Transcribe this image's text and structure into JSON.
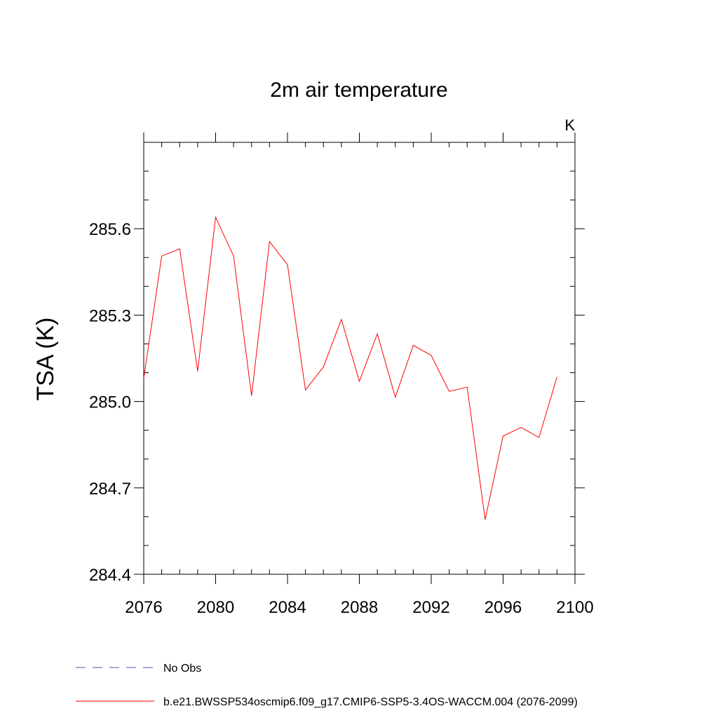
{
  "chart_data": {
    "type": "line",
    "title": "2m air temperature",
    "units_label": "K",
    "xlabel": "",
    "ylabel": "TSA  (K)",
    "xlim": [
      2076,
      2100
    ],
    "ylim": [
      284.4,
      285.9
    ],
    "x_ticks": [
      2076,
      2080,
      2084,
      2088,
      2092,
      2096,
      2100
    ],
    "x_tick_labels": [
      "2076",
      "2080",
      "2084",
      "2088",
      "2092",
      "2096",
      "2100"
    ],
    "y_ticks": [
      284.4,
      284.7,
      285.0,
      285.3,
      285.6
    ],
    "y_tick_labels": [
      "284.4",
      "284.7",
      "285.0",
      "285.3",
      "285.6"
    ],
    "x_minor_step": 1,
    "y_minor_step": 0.1,
    "grid": false,
    "legend_position": "bottom-left",
    "series": [
      {
        "name": "No Obs",
        "color": "#5050a8",
        "dash": "dashed",
        "x": [],
        "y": []
      },
      {
        "name": "b.e21.BWSSP534oscmip6.f09_g17.CMIP6-SSP5-3.4OS-WACCM.004 (2076-2099)",
        "color": "#ff0000",
        "dash": "solid",
        "x": [
          2076,
          2077,
          2078,
          2079,
          2080,
          2081,
          2082,
          2083,
          2084,
          2085,
          2086,
          2087,
          2088,
          2089,
          2090,
          2091,
          2092,
          2093,
          2094,
          2095,
          2096,
          2097,
          2098,
          2099
        ],
        "y": [
          285.08,
          285.505,
          285.53,
          285.105,
          285.64,
          285.505,
          285.02,
          285.555,
          285.475,
          285.04,
          285.12,
          285.285,
          285.07,
          285.235,
          285.015,
          285.195,
          285.16,
          285.035,
          285.05,
          284.59,
          284.88,
          284.91,
          284.875,
          285.085
        ]
      }
    ]
  }
}
